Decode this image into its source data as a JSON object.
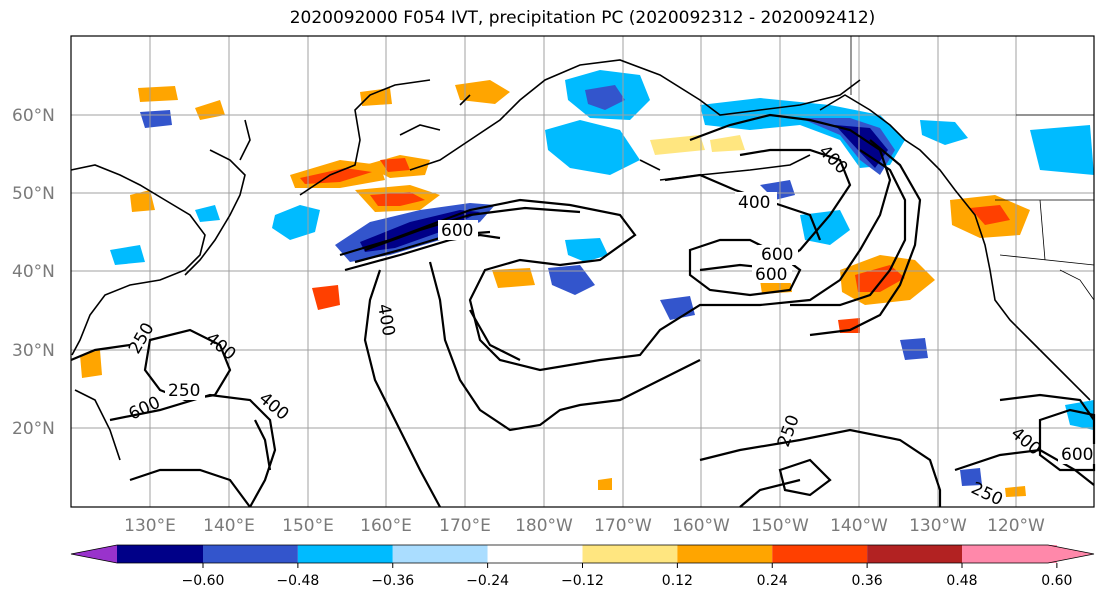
{
  "title": "2020092000 F054 IVT, precipitation PC (2020092312 - 2020092412)",
  "map": {
    "lat_labels": [
      "60°N",
      "50°N",
      "40°N",
      "30°N",
      "20°N"
    ],
    "lon_labels": [
      "130°E",
      "140°E",
      "150°E",
      "160°E",
      "170°E",
      "180°W",
      "170°W",
      "160°W",
      "150°W",
      "140°W",
      "130°W",
      "120°W"
    ],
    "contour_labels": [
      "400",
      "600",
      "400",
      "250",
      "400",
      "600",
      "250",
      "400",
      "600",
      "600",
      "400",
      "250",
      "400",
      "600",
      "250"
    ]
  },
  "colorbar": {
    "tick_labels": [
      "−0.60",
      "−0.48",
      "−0.36",
      "−0.24",
      "−0.12",
      "0.12",
      "0.24",
      "0.36",
      "0.48",
      "0.60"
    ],
    "colors": [
      "#9933cc",
      "#000088",
      "#3355cc",
      "#00bbff",
      "#aaddff",
      "#ffffff",
      "#ffe680",
      "#ffa500",
      "#ff4000",
      "#b22222",
      "#ff88aa"
    ]
  }
}
